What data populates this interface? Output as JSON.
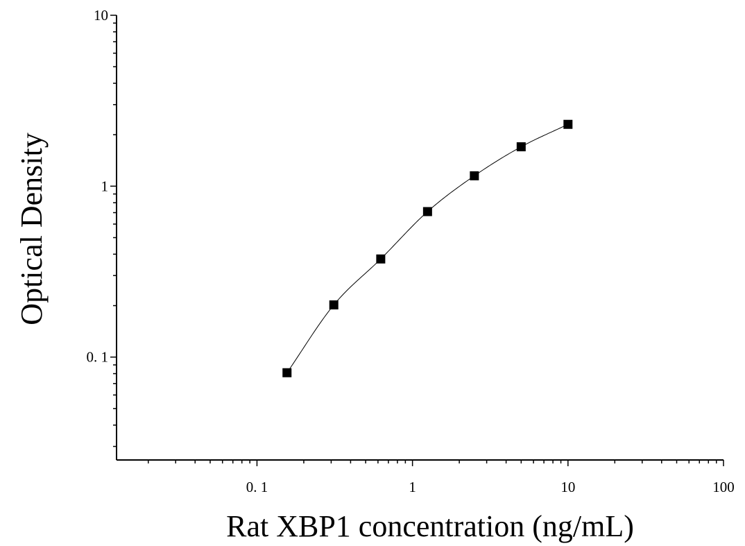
{
  "chart_data": {
    "type": "scatter",
    "xlabel": "Rat XBP1 concentration (ng/mL)",
    "ylabel": "Optical Density",
    "xscale": "log",
    "yscale": "log",
    "xlim": [
      0.0125,
      100
    ],
    "ylim": [
      0.025,
      10
    ],
    "grid": false,
    "legend": "none",
    "x_tick_labels": [
      {
        "value": 0.1,
        "label": "0. 1"
      },
      {
        "value": 1,
        "label": "1"
      },
      {
        "value": 10,
        "label": "10"
      },
      {
        "value": 100,
        "label": "100"
      }
    ],
    "y_tick_labels": [
      {
        "value": 0.1,
        "label": "0. 1"
      },
      {
        "value": 1,
        "label": "1"
      },
      {
        "value": 10,
        "label": "10"
      }
    ],
    "series": [
      {
        "x": [
          0.156,
          0.312,
          0.625,
          1.25,
          2.5,
          5,
          10
        ],
        "y": [
          0.081,
          0.202,
          0.375,
          0.71,
          1.15,
          1.7,
          2.3
        ],
        "marker": "square",
        "color": "#000000",
        "fit_curve": true
      }
    ]
  }
}
